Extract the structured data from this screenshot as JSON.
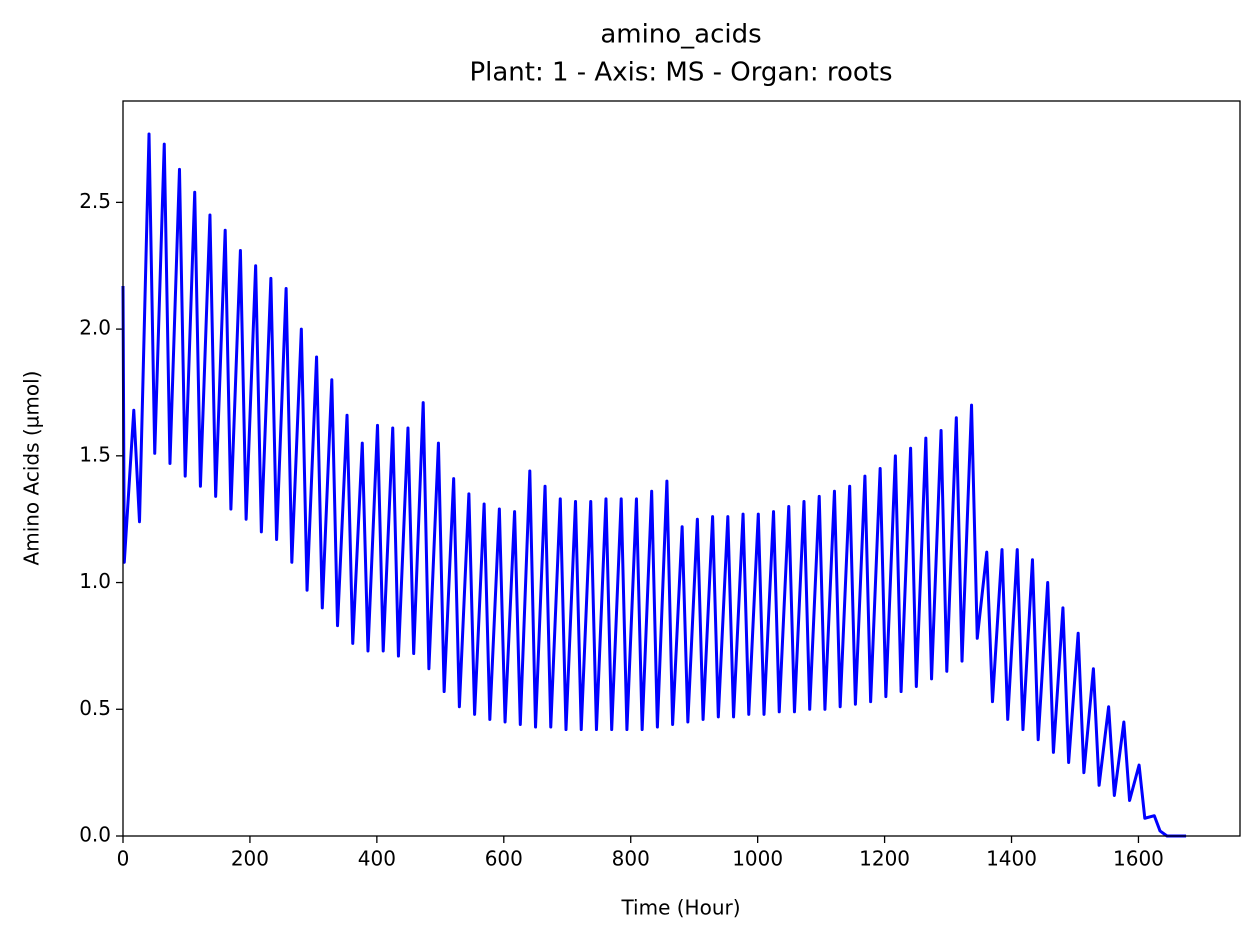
{
  "chart_data": {
    "type": "line",
    "title": "amino_acids",
    "subtitle": "Plant: 1 - Axis: MS - Organ: roots",
    "x_label": "Time (Hour)",
    "y_label": "Amino Acids (µmol)",
    "xlim": [
      0,
      1760
    ],
    "ylim": [
      0,
      2.9
    ],
    "xticks": [
      0,
      200,
      400,
      600,
      800,
      1000,
      1200,
      1400,
      1600
    ],
    "yticks": [
      {
        "value": 0,
        "label": "0.0"
      },
      0.5,
      {
        "value": 1,
        "label": "1.0"
      },
      1.5,
      {
        "value": 2,
        "label": "2.0"
      },
      2.5
    ],
    "grid": false,
    "series": [
      {
        "name": "amino_acids",
        "color": "#0000ff",
        "x": [
          0,
          2,
          17,
          26,
          41,
          50,
          65,
          74,
          89,
          98,
          113,
          122,
          137,
          146,
          161,
          170,
          185,
          194,
          209,
          218,
          233,
          242,
          257,
          266,
          281,
          290,
          305,
          314,
          329,
          338,
          353,
          362,
          377,
          386,
          401,
          410,
          425,
          434,
          449,
          458,
          473,
          482,
          497,
          506,
          521,
          530,
          545,
          554,
          569,
          578,
          593,
          602,
          617,
          626,
          641,
          650,
          665,
          674,
          689,
          698,
          713,
          722,
          737,
          746,
          761,
          770,
          785,
          794,
          809,
          818,
          833,
          842,
          857,
          866,
          881,
          890,
          905,
          914,
          929,
          938,
          953,
          962,
          977,
          986,
          1001,
          1010,
          1025,
          1034,
          1049,
          1058,
          1073,
          1082,
          1097,
          1106,
          1121,
          1130,
          1145,
          1154,
          1169,
          1178,
          1193,
          1202,
          1217,
          1226,
          1241,
          1250,
          1265,
          1274,
          1289,
          1298,
          1313,
          1322,
          1337,
          1346,
          1361,
          1370,
          1385,
          1394,
          1409,
          1418,
          1433,
          1442,
          1457,
          1466,
          1481,
          1490,
          1505,
          1514,
          1529,
          1538,
          1553,
          1562,
          1577,
          1586,
          1601,
          1610,
          1625,
          1634,
          1645,
          1675
        ],
        "values": [
          2.17,
          1.08,
          1.68,
          1.24,
          2.77,
          1.51,
          2.73,
          1.47,
          2.63,
          1.42,
          2.54,
          1.38,
          2.45,
          1.34,
          2.39,
          1.29,
          2.31,
          1.25,
          2.25,
          1.2,
          2.2,
          1.17,
          2.16,
          1.08,
          2.0,
          0.97,
          1.89,
          0.9,
          1.8,
          0.83,
          1.66,
          0.76,
          1.55,
          0.73,
          1.62,
          0.73,
          1.61,
          0.71,
          1.61,
          0.72,
          1.71,
          0.66,
          1.55,
          0.57,
          1.41,
          0.51,
          1.35,
          0.48,
          1.31,
          0.46,
          1.29,
          0.45,
          1.28,
          0.44,
          1.44,
          0.43,
          1.38,
          0.43,
          1.33,
          0.42,
          1.32,
          0.42,
          1.32,
          0.42,
          1.33,
          0.42,
          1.33,
          0.42,
          1.33,
          0.42,
          1.36,
          0.43,
          1.4,
          0.44,
          1.22,
          0.45,
          1.25,
          0.46,
          1.26,
          0.47,
          1.26,
          0.47,
          1.27,
          0.48,
          1.27,
          0.48,
          1.28,
          0.49,
          1.3,
          0.49,
          1.32,
          0.5,
          1.34,
          0.5,
          1.36,
          0.51,
          1.38,
          0.52,
          1.42,
          0.53,
          1.45,
          0.55,
          1.5,
          0.57,
          1.53,
          0.59,
          1.57,
          0.62,
          1.6,
          0.65,
          1.65,
          0.69,
          1.7,
          0.78,
          1.12,
          0.53,
          1.13,
          0.46,
          1.13,
          0.42,
          1.09,
          0.38,
          1.0,
          0.33,
          0.9,
          0.29,
          0.8,
          0.25,
          0.66,
          0.2,
          0.51,
          0.16,
          0.45,
          0.14,
          0.28,
          0.07,
          0.08,
          0.02,
          0,
          0
        ]
      }
    ]
  }
}
